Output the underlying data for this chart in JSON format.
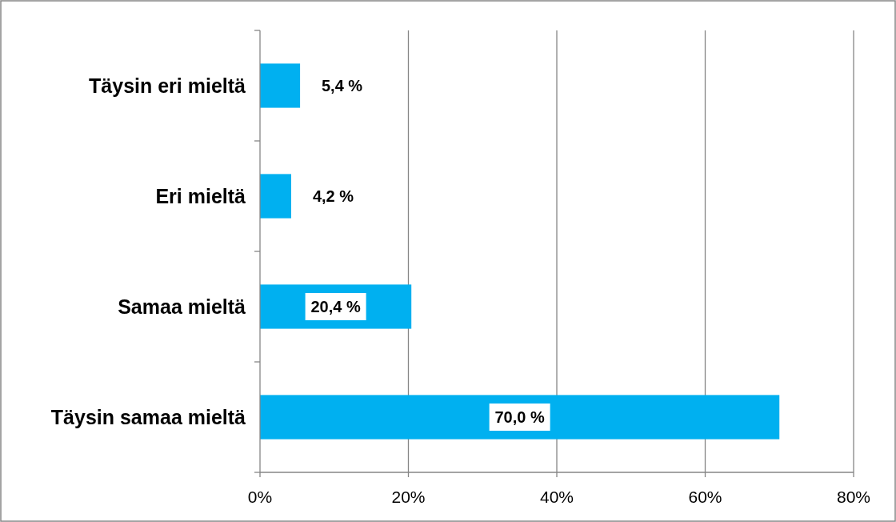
{
  "chart_data": {
    "type": "bar",
    "orientation": "horizontal",
    "categories": [
      "Täysin eri mieltä",
      "Eri mieltä",
      "Samaa mieltä",
      "Täysin samaa mieltä"
    ],
    "values": [
      5.4,
      4.2,
      20.4,
      70.0
    ],
    "value_labels": [
      "5,4 %",
      "4,2 %",
      "20,4 %",
      "70,0 %"
    ],
    "color": "#00b0f0",
    "xlim": [
      0,
      80
    ],
    "xticks": [
      {
        "value": 0,
        "label": "0%"
      },
      {
        "value": 20,
        "label": "20%"
      },
      {
        "value": 40,
        "label": "40%"
      },
      {
        "value": 60,
        "label": "60%"
      },
      {
        "value": 80,
        "label": "80%"
      }
    ],
    "grid": "x"
  }
}
